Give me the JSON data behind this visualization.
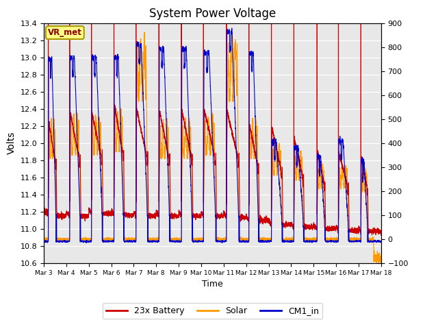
{
  "title": "System Power Voltage",
  "xlabel": "Time",
  "ylabel": "Volts",
  "xlim": [
    0,
    15
  ],
  "ylim_left": [
    10.6,
    13.4
  ],
  "ylim_right": [
    -100,
    900
  ],
  "yticks_left": [
    10.6,
    10.8,
    11.0,
    11.2,
    11.4,
    11.6,
    11.8,
    12.0,
    12.2,
    12.4,
    12.6,
    12.8,
    13.0,
    13.2,
    13.4
  ],
  "yticks_right": [
    -100,
    0,
    100,
    200,
    300,
    400,
    500,
    600,
    700,
    800,
    900
  ],
  "xtick_labels": [
    "Mar 3",
    "Mar 4",
    "Mar 5",
    "Mar 6",
    "Mar 7",
    "Mar 8",
    "Mar 9",
    "Mar 10",
    "Mar 11",
    "Mar 12",
    "Mar 13",
    "Mar 14",
    "Mar 15",
    "Mar 16",
    "Mar 17",
    "Mar 18"
  ],
  "xtick_positions": [
    0,
    1,
    2,
    3,
    4,
    5,
    6,
    7,
    8,
    9,
    10,
    11,
    12,
    13,
    14,
    15
  ],
  "color_battery": "#cc0000",
  "color_solar": "#ff9900",
  "color_cm1": "#0000cc",
  "legend_labels": [
    "23x Battery",
    "Solar",
    "CM1_in"
  ],
  "annotation_text": "VR_met",
  "bg_color": "#e8e8e8",
  "grid_color": "white",
  "title_fontsize": 12
}
